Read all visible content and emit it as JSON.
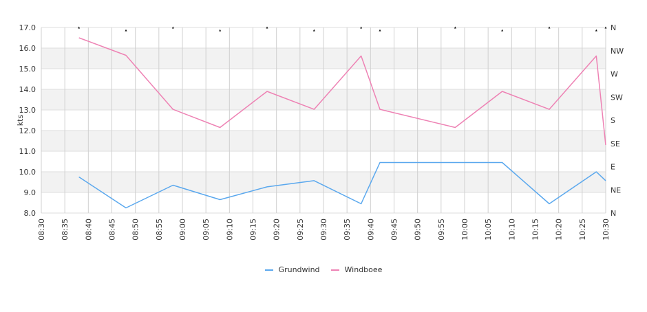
{
  "chart_data": {
    "type": "line",
    "title": "",
    "xlabel": "",
    "ylabel": "kts",
    "ylim": [
      8.0,
      17.0
    ],
    "y_ticks": [
      "8.0",
      "9.0",
      "10.0",
      "11.0",
      "12.0",
      "13.0",
      "14.0",
      "15.0",
      "16.0",
      "17.0"
    ],
    "x_ticks": [
      "08:30",
      "08:35",
      "08:40",
      "08:45",
      "08:50",
      "08:55",
      "09:00",
      "09:05",
      "09:10",
      "09:15",
      "09:20",
      "09:25",
      "09:30",
      "09:35",
      "09:40",
      "09:45",
      "09:50",
      "09:55",
      "10:00",
      "10:05",
      "10:10",
      "10:15",
      "10:20",
      "10:25",
      "10:30"
    ],
    "y2_ticks": [
      "N",
      "NE",
      "E",
      "SE",
      "S",
      "SW",
      "W",
      "NW",
      "N"
    ],
    "grid": true,
    "legend_position": "bottom",
    "series": [
      {
        "name": "Grundwind",
        "color": "#5aa8ee",
        "points": [
          [
            "08:38",
            9.75
          ],
          [
            "08:48",
            8.25
          ],
          [
            "08:58",
            9.35
          ],
          [
            "09:08",
            8.65
          ],
          [
            "09:18",
            9.27
          ],
          [
            "09:28",
            9.57
          ],
          [
            "09:38",
            8.45
          ],
          [
            "09:42",
            10.45
          ],
          [
            "09:58",
            10.45
          ],
          [
            "10:08",
            10.45
          ],
          [
            "10:18",
            8.45
          ],
          [
            "10:28",
            10.0
          ],
          [
            "10:30",
            9.57
          ]
        ]
      },
      {
        "name": "Windboee",
        "color": "#ee82b4",
        "points": [
          [
            "08:38",
            16.5
          ],
          [
            "08:48",
            15.65
          ],
          [
            "08:58",
            13.03
          ],
          [
            "09:08",
            12.15
          ],
          [
            "09:18",
            13.9
          ],
          [
            "09:28",
            13.03
          ],
          [
            "09:38",
            15.62
          ],
          [
            "09:42",
            13.03
          ],
          [
            "09:58",
            12.15
          ],
          [
            "10:08",
            13.9
          ],
          [
            "10:18",
            13.03
          ],
          [
            "10:28",
            15.62
          ],
          [
            "10:30",
            11.3
          ]
        ]
      }
    ],
    "direction_markers": [
      [
        "08:38",
        "N"
      ],
      [
        "08:48",
        "N"
      ],
      [
        "08:58",
        "N"
      ],
      [
        "09:08",
        "N"
      ],
      [
        "09:18",
        "N"
      ],
      [
        "09:28",
        "N"
      ],
      [
        "09:38",
        "N"
      ],
      [
        "09:42",
        "N"
      ],
      [
        "09:58",
        "N"
      ],
      [
        "10:08",
        "N"
      ],
      [
        "10:18",
        "N"
      ],
      [
        "10:28",
        "N"
      ],
      [
        "10:30",
        "N"
      ]
    ]
  }
}
